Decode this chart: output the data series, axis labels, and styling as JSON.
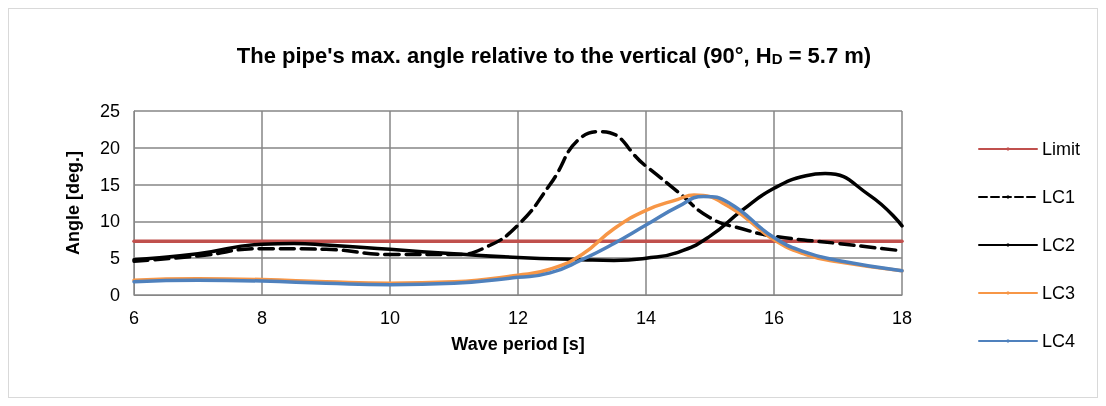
{
  "chart_data": {
    "type": "line",
    "title": "The pipe's max. angle relative to the vertical (90°, H$_{D}$ = 5.7 m)",
    "xlabel": "Wave period [s]",
    "ylabel": "Angle [deg.]",
    "xlim": [
      6,
      18
    ],
    "xticks": [
      6,
      8,
      10,
      12,
      14,
      16,
      18
    ],
    "ylim": [
      0,
      25
    ],
    "yticks": [
      0,
      5,
      10,
      15,
      20,
      25
    ],
    "grid": true,
    "legend": "right",
    "marker": "none",
    "series": [
      {
        "name": "Limit",
        "color": "#c0504d",
        "x": [
          6,
          18
        ],
        "values": [
          7.3,
          7.3
        ]
      },
      {
        "name": "LC1",
        "color": "#000000",
        "line_style": "dashed",
        "x": [
          6,
          7,
          8,
          9,
          10,
          11,
          11.5,
          12,
          12.5,
          13,
          13.3,
          14,
          14.5,
          15,
          15.5,
          16,
          17,
          18
        ],
        "values": [
          4.6,
          5.3,
          6.3,
          6.2,
          5.5,
          5.5,
          6.5,
          9.5,
          15,
          21.5,
          22.2,
          17.5,
          14,
          10.5,
          9,
          8,
          7,
          6
        ]
      },
      {
        "name": "LC2",
        "color": "#000000",
        "x": [
          6,
          7,
          8,
          8.5,
          9,
          10,
          11,
          12,
          13,
          13.5,
          14,
          14.5,
          15,
          15.5,
          16,
          16.5,
          16.8,
          17.5,
          18
        ],
        "values": [
          4.8,
          5.6,
          6.9,
          7,
          6.8,
          6.2,
          5.6,
          5.1,
          4.8,
          4.7,
          5,
          5.8,
          8,
          11.5,
          14.5,
          16.2,
          16.5,
          13.5,
          9.4
        ]
      },
      {
        "name": "LC3",
        "color": "#f79646",
        "x": [
          6,
          7,
          8,
          9,
          10,
          11,
          12,
          12.5,
          13,
          13.5,
          14,
          14.5,
          14.75,
          15.3,
          16,
          16.5,
          17,
          18
        ],
        "values": [
          2,
          2.2,
          2.1,
          1.8,
          1.6,
          1.8,
          2.7,
          3.5,
          5.5,
          9,
          11.5,
          13,
          13.6,
          12,
          7.5,
          5.5,
          4.5,
          3.3
        ]
      },
      {
        "name": "LC4",
        "color": "#4f81bd",
        "x": [
          6,
          7,
          8,
          9,
          10,
          11,
          12,
          12.5,
          13,
          13.5,
          14,
          14.5,
          14.9,
          15.3,
          16,
          16.5,
          17,
          18
        ],
        "values": [
          1.8,
          2,
          1.9,
          1.6,
          1.4,
          1.6,
          2.4,
          3,
          4.8,
          7,
          9.5,
          12,
          13.4,
          12.5,
          7.8,
          5.8,
          4.7,
          3.3
        ]
      }
    ]
  }
}
